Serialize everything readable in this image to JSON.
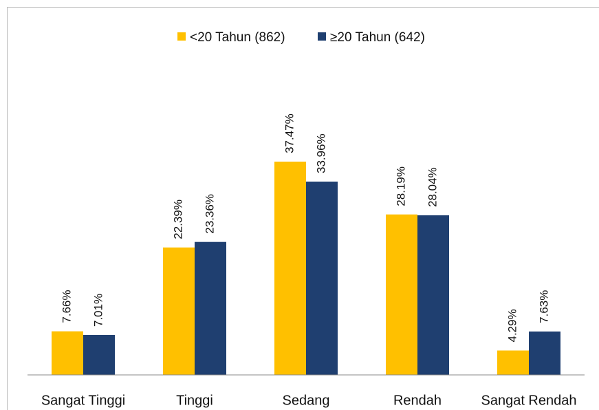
{
  "chart_data": {
    "type": "bar",
    "categories": [
      "Sangat Tinggi",
      "Tinggi",
      "Sedang",
      "Rendah",
      "Sangat Rendah"
    ],
    "series": [
      {
        "name": "<20 Tahun (862)",
        "color": "#FFC000",
        "values": [
          7.66,
          22.39,
          37.47,
          28.19,
          4.29
        ],
        "value_labels": [
          "7.66%",
          "22.39%",
          "37.47%",
          "28.19%",
          "4.29%"
        ]
      },
      {
        "name": "≥20 Tahun (642)",
        "color": "#1F3F70",
        "values": [
          7.01,
          23.36,
          33.96,
          28.04,
          7.63
        ],
        "value_labels": [
          "7.01%",
          "23.36%",
          "33.96%",
          "28.04%",
          "7.63%"
        ]
      }
    ],
    "ylim": [
      0,
      40
    ]
  }
}
